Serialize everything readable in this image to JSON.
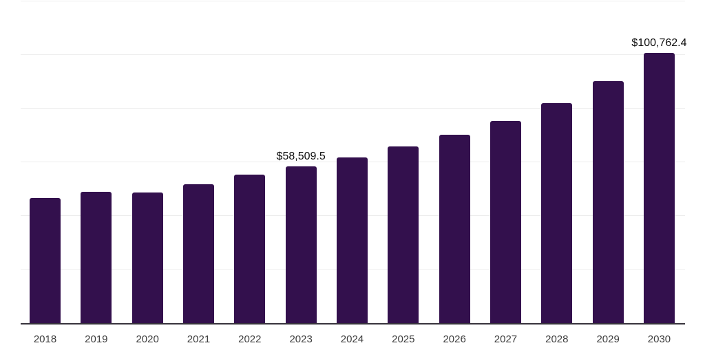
{
  "chart_data": {
    "type": "bar",
    "title": "",
    "xlabel": "",
    "ylabel": "",
    "categories": [
      "2018",
      "2019",
      "2020",
      "2021",
      "2022",
      "2023",
      "2024",
      "2025",
      "2026",
      "2027",
      "2028",
      "2029",
      "2030"
    ],
    "values": [
      46600,
      48900,
      48700,
      51900,
      55400,
      58509.5,
      61800,
      66000,
      70200,
      75500,
      82000,
      90300,
      100762.4
    ],
    "data_labels": {
      "2023": "$58,509.5",
      "2030": "$100,762.4"
    },
    "ylim": [
      0,
      120000
    ],
    "grid_interval": 20000,
    "grid": true,
    "legend": false,
    "bar_color": "#33104d",
    "background_color": "#ffffff",
    "gridline_color": "#ededed",
    "axis_line_color": "#37333c",
    "axis_label_color": "#3d3d3d",
    "data_label_color": "#0d0d0d"
  }
}
